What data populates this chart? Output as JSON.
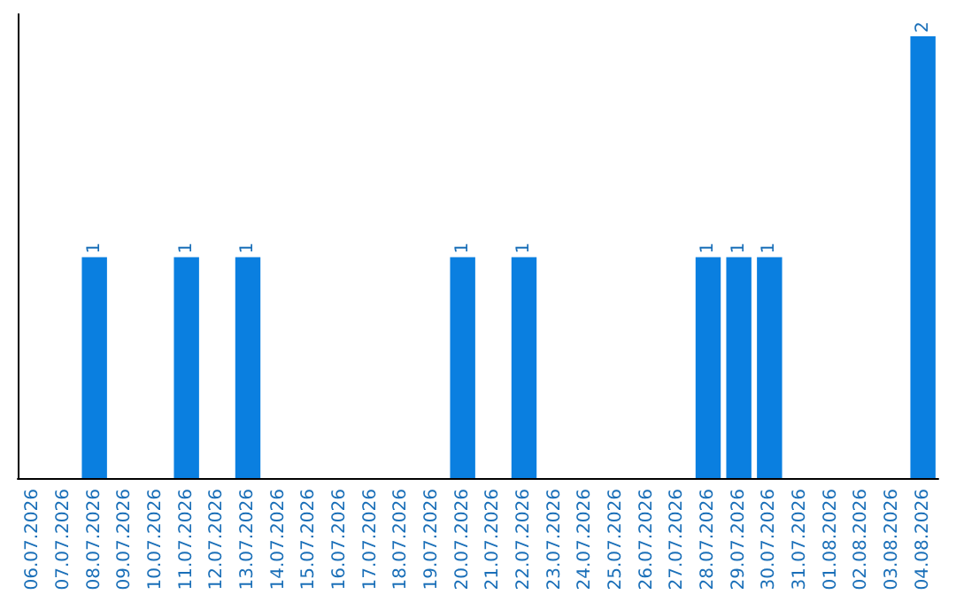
{
  "chart_data": {
    "type": "bar",
    "categories": [
      "06.07.2026",
      "07.07.2026",
      "08.07.2026",
      "09.07.2026",
      "10.07.2026",
      "11.07.2026",
      "12.07.2026",
      "13.07.2026",
      "14.07.2026",
      "15.07.2026",
      "16.07.2026",
      "17.07.2026",
      "18.07.2026",
      "19.07.2026",
      "20.07.2026",
      "21.07.2026",
      "22.07.2026",
      "23.07.2026",
      "24.07.2026",
      "25.07.2026",
      "26.07.2026",
      "27.07.2026",
      "28.07.2026",
      "29.07.2026",
      "30.07.2026",
      "31.07.2026",
      "01.08.2026",
      "02.08.2026",
      "03.08.2026",
      "04.08.2026"
    ],
    "values": [
      0,
      0,
      1,
      0,
      0,
      1,
      0,
      1,
      0,
      0,
      0,
      0,
      0,
      0,
      1,
      0,
      1,
      0,
      0,
      0,
      0,
      0,
      1,
      1,
      1,
      0,
      0,
      0,
      0,
      2
    ],
    "value_labels": [
      null,
      null,
      "1",
      null,
      null,
      "1",
      null,
      "1",
      null,
      null,
      null,
      null,
      null,
      null,
      "1",
      null,
      "1",
      null,
      null,
      null,
      null,
      null,
      "1",
      "1",
      "1",
      null,
      null,
      null,
      null,
      "2"
    ],
    "color": "#0a7fe0",
    "grid": false,
    "tick_labels": "x"
  }
}
